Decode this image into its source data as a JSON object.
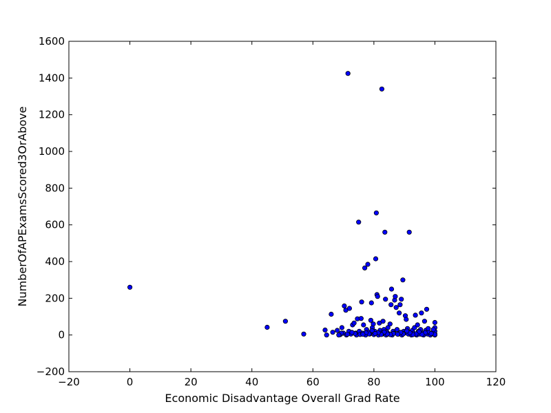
{
  "chart_data": {
    "type": "scatter",
    "title": "",
    "xlabel": "Economic Disadvantage Overall Grad Rate",
    "ylabel": "NumberOfAPExamsScored3OrAbove",
    "xlim": [
      -20,
      120
    ],
    "ylim": [
      -200,
      1600
    ],
    "xticks": [
      -20,
      0,
      20,
      40,
      60,
      80,
      100,
      120
    ],
    "yticks": [
      -200,
      0,
      200,
      400,
      600,
      800,
      1000,
      1200,
      1400,
      1600
    ],
    "xtick_labels": [
      "−20",
      "0",
      "20",
      "40",
      "60",
      "80",
      "100",
      "120"
    ],
    "ytick_labels": [
      "−200",
      "0",
      "200",
      "400",
      "600",
      "800",
      "1000",
      "1200",
      "1400",
      "1600"
    ],
    "grid": false,
    "marker_color": "#0000ff",
    "points": [
      [
        0,
        260
      ],
      [
        45,
        42
      ],
      [
        51,
        75
      ],
      [
        57,
        5
      ],
      [
        64,
        27
      ],
      [
        64.5,
        0
      ],
      [
        66,
        113
      ],
      [
        66.5,
        15
      ],
      [
        68,
        25
      ],
      [
        69,
        2
      ],
      [
        69.5,
        40
      ],
      [
        70,
        10
      ],
      [
        70.3,
        158
      ],
      [
        70.8,
        135
      ],
      [
        71,
        0
      ],
      [
        71.5,
        1425
      ],
      [
        71.8,
        20
      ],
      [
        72,
        145
      ],
      [
        72.5,
        5
      ],
      [
        73,
        55
      ],
      [
        73.5,
        65
      ],
      [
        74,
        10
      ],
      [
        74.3,
        0
      ],
      [
        74.6,
        88
      ],
      [
        75,
        615
      ],
      [
        75.2,
        20
      ],
      [
        75.5,
        3
      ],
      [
        75.8,
        90
      ],
      [
        76,
        180
      ],
      [
        76.3,
        10
      ],
      [
        76.6,
        55
      ],
      [
        77,
        365
      ],
      [
        77.3,
        0
      ],
      [
        77.6,
        30
      ],
      [
        78,
        385
      ],
      [
        78.3,
        15
      ],
      [
        78.6,
        5
      ],
      [
        79,
        80
      ],
      [
        79.2,
        175
      ],
      [
        79.5,
        40
      ],
      [
        79.8,
        60
      ],
      [
        80,
        2
      ],
      [
        80.3,
        20
      ],
      [
        80.6,
        415
      ],
      [
        80.8,
        665
      ],
      [
        81,
        220
      ],
      [
        81.2,
        210
      ],
      [
        81.5,
        0
      ],
      [
        81.8,
        65
      ],
      [
        82,
        25
      ],
      [
        82.3,
        10
      ],
      [
        82.6,
        1340
      ],
      [
        82.8,
        5
      ],
      [
        83,
        75
      ],
      [
        83.3,
        30
      ],
      [
        83.6,
        560
      ],
      [
        83.8,
        195
      ],
      [
        84,
        0
      ],
      [
        84.3,
        15
      ],
      [
        84.6,
        40
      ],
      [
        85,
        5
      ],
      [
        85.3,
        60
      ],
      [
        85.6,
        165
      ],
      [
        85.8,
        250
      ],
      [
        86,
        0
      ],
      [
        86.3,
        20
      ],
      [
        86.6,
        10
      ],
      [
        86.8,
        190
      ],
      [
        87,
        210
      ],
      [
        87.3,
        150
      ],
      [
        87.6,
        30
      ],
      [
        88,
        5
      ],
      [
        88.3,
        120
      ],
      [
        88.6,
        165
      ],
      [
        89,
        195
      ],
      [
        89.2,
        0
      ],
      [
        89.5,
        300
      ],
      [
        89.8,
        20
      ],
      [
        90,
        10
      ],
      [
        90.3,
        105
      ],
      [
        90.6,
        85
      ],
      [
        91,
        35
      ],
      [
        91.3,
        5
      ],
      [
        91.6,
        560
      ],
      [
        92,
        15
      ],
      [
        92.3,
        0
      ],
      [
        92.6,
        25
      ],
      [
        93,
        10
      ],
      [
        93.3,
        40
      ],
      [
        93.6,
        108
      ],
      [
        94,
        0
      ],
      [
        94.3,
        55
      ],
      [
        94.6,
        20
      ],
      [
        95,
        5
      ],
      [
        95.3,
        30
      ],
      [
        95.6,
        120
      ],
      [
        96,
        10
      ],
      [
        96.3,
        0
      ],
      [
        96.6,
        75
      ],
      [
        97,
        25
      ],
      [
        97.3,
        140
      ],
      [
        97.6,
        5
      ],
      [
        98,
        15
      ],
      [
        98.5,
        0
      ],
      [
        99,
        10
      ],
      [
        100,
        0
      ],
      [
        100,
        5
      ],
      [
        100,
        20
      ],
      [
        100,
        40
      ],
      [
        100,
        68
      ],
      [
        100,
        2
      ],
      [
        99.5,
        30
      ],
      [
        98.8,
        8
      ],
      [
        97.8,
        35
      ],
      [
        96.8,
        12
      ],
      [
        95.8,
        3
      ],
      [
        94.8,
        18
      ],
      [
        93.8,
        6
      ],
      [
        92.8,
        2
      ],
      [
        91.8,
        12
      ],
      [
        90.8,
        22
      ],
      [
        89.6,
        6
      ],
      [
        88.8,
        14
      ],
      [
        87.8,
        4
      ],
      [
        86.4,
        8
      ],
      [
        85.4,
        2
      ],
      [
        84.4,
        6
      ],
      [
        83.4,
        16
      ],
      [
        82.4,
        3
      ],
      [
        81.4,
        12
      ],
      [
        80.4,
        8
      ],
      [
        79.4,
        24
      ],
      [
        78.4,
        6
      ],
      [
        77.4,
        12
      ],
      [
        76.4,
        4
      ],
      [
        73.8,
        8
      ],
      [
        72.8,
        14
      ],
      [
        71.3,
        4
      ],
      [
        69.3,
        10
      ],
      [
        68.5,
        0
      ]
    ]
  }
}
